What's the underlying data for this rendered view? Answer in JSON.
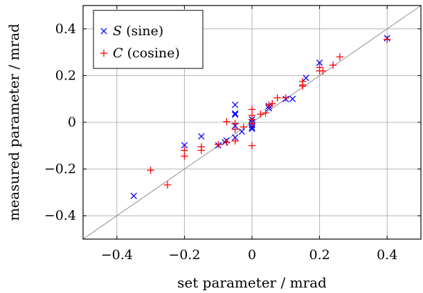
{
  "chart_data": {
    "type": "scatter",
    "title": "",
    "xlabel": "set parameter / mrad",
    "ylabel": "measured parameter / mrad",
    "xlim": [
      -0.5,
      0.5
    ],
    "ylim": [
      -0.5,
      0.5
    ],
    "x_ticks": [
      -0.4,
      -0.2,
      0,
      0.2,
      0.4
    ],
    "y_ticks": [
      -0.4,
      -0.2,
      0,
      0.2,
      0.4
    ],
    "x_tick_labels": [
      "−0.4",
      "−0.2",
      "0",
      "0.2",
      "0.4"
    ],
    "y_tick_labels": [
      "−0.4",
      "−0.2",
      "0",
      "0.2",
      "0.4"
    ],
    "grid": true,
    "reference_line": "y = x",
    "legend_position": "top-left",
    "series": [
      {
        "name": "S (sine)",
        "legend_symbol": "S",
        "legend_suffix": " (sine)",
        "marker": "x",
        "color": "#0000ff",
        "points": [
          [
            -0.35,
            -0.315
          ],
          [
            -0.2,
            -0.098
          ],
          [
            -0.15,
            -0.06
          ],
          [
            -0.1,
            -0.098
          ],
          [
            -0.08,
            -0.085
          ],
          [
            -0.075,
            -0.078
          ],
          [
            -0.05,
            0.075
          ],
          [
            -0.05,
            0.038
          ],
          [
            -0.05,
            0.033
          ],
          [
            -0.05,
            -0.015
          ],
          [
            -0.05,
            -0.065
          ],
          [
            -0.03,
            -0.04
          ],
          [
            0.0,
            0.012
          ],
          [
            0.0,
            0.0
          ],
          [
            0.0,
            -0.012
          ],
          [
            0.0,
            -0.022
          ],
          [
            0.0,
            -0.028
          ],
          [
            0.05,
            0.07
          ],
          [
            0.05,
            0.06
          ],
          [
            0.1,
            0.1
          ],
          [
            0.12,
            0.1
          ],
          [
            0.16,
            0.19
          ],
          [
            0.2,
            0.255
          ],
          [
            0.4,
            0.36
          ]
        ]
      },
      {
        "name": "C (cosine)",
        "legend_symbol": "C",
        "legend_suffix": " (cosine)",
        "marker": "+",
        "color": "#ff0000",
        "points": [
          [
            -0.3,
            -0.205
          ],
          [
            -0.25,
            -0.268
          ],
          [
            -0.2,
            -0.12
          ],
          [
            -0.2,
            -0.145
          ],
          [
            -0.15,
            -0.105
          ],
          [
            -0.15,
            -0.12
          ],
          [
            -0.1,
            -0.095
          ],
          [
            -0.075,
            0.003
          ],
          [
            -0.075,
            -0.085
          ],
          [
            -0.05,
            -0.03
          ],
          [
            -0.05,
            -0.08
          ],
          [
            -0.05,
            -0.005
          ],
          [
            -0.025,
            -0.02
          ],
          [
            0.0,
            0.055
          ],
          [
            0.0,
            0.03
          ],
          [
            0.0,
            0.012
          ],
          [
            0.0,
            -0.005
          ],
          [
            0.0,
            -0.1
          ],
          [
            0.025,
            0.035
          ],
          [
            0.04,
            0.04
          ],
          [
            0.05,
            0.075
          ],
          [
            0.06,
            0.08
          ],
          [
            0.075,
            0.105
          ],
          [
            0.1,
            0.105
          ],
          [
            0.15,
            0.175
          ],
          [
            0.15,
            0.16
          ],
          [
            0.15,
            0.155
          ],
          [
            0.2,
            0.235
          ],
          [
            0.2,
            0.22
          ],
          [
            0.21,
            0.22
          ],
          [
            0.24,
            0.245
          ],
          [
            0.26,
            0.28
          ],
          [
            0.4,
            0.355
          ]
        ]
      }
    ]
  }
}
